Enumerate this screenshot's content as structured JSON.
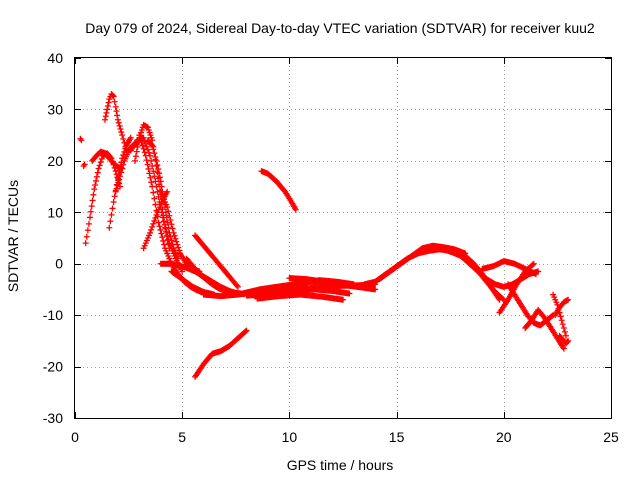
{
  "chart_data": {
    "type": "scatter",
    "title": "Day 079 of 2024, Sidereal Day-to-day VTEC variation (SDTVAR) for receiver kuu2",
    "xlabel": "GPS time / hours",
    "ylabel": "SDTVAR / TECUs",
    "xlim": [
      0,
      25
    ],
    "ylim": [
      -30,
      40
    ],
    "xticks": [
      0,
      5,
      10,
      15,
      20,
      25
    ],
    "yticks": [
      -30,
      -20,
      -10,
      0,
      10,
      20,
      30,
      40
    ],
    "grid": true,
    "marker": "+",
    "color": "#ff0000",
    "series": [
      {
        "name": "trace-01",
        "x": [
          0.25,
          0.3
        ],
        "y": [
          24.3,
          24.0
        ]
      },
      {
        "name": "trace-02",
        "x": [
          0.4,
          0.45
        ],
        "y": [
          19.0,
          19.3
        ]
      },
      {
        "name": "trace-03",
        "x": [
          0.5,
          0.7,
          0.9,
          1.1,
          1.3,
          1.5,
          1.7,
          1.9,
          2.1
        ],
        "y": [
          4.0,
          9.0,
          14.5,
          18.5,
          21.0,
          21.5,
          20.5,
          18.0,
          15.0
        ]
      },
      {
        "name": "trace-04",
        "x": [
          0.8,
          1.0,
          1.2,
          1.4,
          1.6,
          1.8,
          2.0,
          2.2
        ],
        "y": [
          20.0,
          21.0,
          21.8,
          21.5,
          20.5,
          19.5,
          18.8,
          18.5
        ]
      },
      {
        "name": "trace-05",
        "x": [
          1.4,
          1.5,
          1.6,
          1.7,
          1.8,
          1.9,
          2.0,
          2.2,
          2.4
        ],
        "y": [
          28.0,
          30.0,
          32.0,
          33.0,
          32.5,
          30.5,
          28.0,
          25.0,
          22.0
        ]
      },
      {
        "name": "trace-06",
        "x": [
          1.6,
          1.8,
          2.0,
          2.2,
          2.4,
          2.6
        ],
        "y": [
          7.0,
          12.0,
          16.5,
          20.5,
          23.0,
          24.5
        ]
      },
      {
        "name": "trace-07",
        "x": [
          1.9,
          2.1,
          2.3,
          2.5,
          2.7,
          2.9
        ],
        "y": [
          14.0,
          17.0,
          20.0,
          22.0,
          23.0,
          23.3
        ]
      },
      {
        "name": "trace-08",
        "x": [
          2.8,
          3.0,
          3.2,
          3.4,
          3.6,
          3.8,
          4.0,
          4.2,
          4.4
        ],
        "y": [
          20.0,
          24.5,
          27.0,
          26.5,
          24.0,
          19.0,
          13.0,
          7.0,
          3.0
        ]
      },
      {
        "name": "trace-09",
        "x": [
          2.6,
          2.9,
          3.2,
          3.5,
          3.8,
          4.1,
          4.4,
          4.7,
          5.0
        ],
        "y": [
          22.0,
          24.0,
          24.5,
          21.0,
          15.0,
          9.0,
          4.0,
          1.0,
          -1.5
        ]
      },
      {
        "name": "trace-10",
        "x": [
          3.0,
          3.3,
          3.6,
          3.9,
          4.2,
          4.5,
          4.8,
          5.1,
          5.4,
          5.7,
          6.0
        ],
        "y": [
          25.0,
          21.0,
          15.0,
          8.0,
          3.0,
          0.0,
          -2.0,
          -3.5,
          -4.5,
          -5.2,
          -5.6
        ]
      },
      {
        "name": "trace-11",
        "x": [
          3.4,
          3.6,
          3.8,
          4.0,
          4.2,
          4.4,
          4.6,
          4.8
        ],
        "y": [
          24.0,
          23.0,
          20.0,
          16.0,
          11.0,
          6.0,
          3.0,
          1.0
        ]
      },
      {
        "name": "trace-12",
        "x": [
          3.2,
          3.5,
          3.8,
          4.1,
          4.3
        ],
        "y": [
          3.0,
          6.0,
          9.5,
          12.5,
          14.0
        ]
      },
      {
        "name": "trace-13",
        "x": [
          4.0,
          4.3,
          4.6,
          4.9,
          5.2,
          5.5,
          5.8
        ],
        "y": [
          14.0,
          11.0,
          6.0,
          2.0,
          0.0,
          -1.0,
          -1.5
        ]
      },
      {
        "name": "trace-14",
        "x": [
          4.0,
          4.4,
          4.8,
          5.2,
          5.6,
          6.0,
          6.4,
          6.8,
          7.2,
          7.6
        ],
        "y": [
          0.0,
          0.0,
          -0.3,
          -0.8,
          -1.5,
          -2.5,
          -3.5,
          -4.5,
          -5.3,
          -5.8
        ]
      },
      {
        "name": "trace-15",
        "x": [
          4.5,
          5.0,
          5.5,
          6.0,
          6.5
        ],
        "y": [
          -1.5,
          -3.0,
          -4.5,
          -5.5,
          -6.0
        ]
      },
      {
        "name": "trace-16",
        "x": [
          5.6,
          6.0,
          6.4,
          6.8,
          7.2,
          7.6
        ],
        "y": [
          5.5,
          3.5,
          1.5,
          -0.5,
          -2.5,
          -4.5
        ]
      },
      {
        "name": "trace-17",
        "x": [
          5.2,
          5.5,
          5.8,
          6.1,
          6.4,
          6.7,
          7.0,
          7.3,
          7.6,
          7.9
        ],
        "y": [
          1.0,
          -0.5,
          -2.0,
          -3.0,
          -4.0,
          -4.8,
          -5.3,
          -5.6,
          -5.8,
          -5.9
        ]
      },
      {
        "name": "trace-18",
        "x": [
          6.0,
          6.8,
          7.6,
          8.4,
          9.2,
          10.0,
          10.8,
          11.6,
          12.4,
          13.2,
          14.0
        ],
        "y": [
          -6.0,
          -6.3,
          -6.0,
          -5.5,
          -5.2,
          -5.0,
          -4.8,
          -4.5,
          -4.3,
          -4.2,
          -4.0
        ]
      },
      {
        "name": "trace-19",
        "x": [
          7.0,
          7.8,
          8.6,
          9.4,
          10.2,
          11.0,
          11.8,
          12.6,
          13.4
        ],
        "y": [
          -5.5,
          -5.8,
          -5.0,
          -4.5,
          -4.0,
          -3.5,
          -3.8,
          -4.2,
          -4.6
        ]
      },
      {
        "name": "trace-20",
        "x": [
          8.0,
          8.8,
          9.6,
          10.4,
          11.2,
          12.0,
          12.8
        ],
        "y": [
          -6.2,
          -6.0,
          -5.5,
          -5.2,
          -5.0,
          -5.3,
          -5.8
        ]
      },
      {
        "name": "trace-21",
        "x": [
          9.0,
          9.8,
          10.6,
          11.4,
          12.2,
          13.0
        ],
        "y": [
          -5.5,
          -4.8,
          -3.8,
          -3.2,
          -3.5,
          -4.0
        ]
      },
      {
        "name": "trace-22",
        "x": [
          8.5,
          9.5,
          10.5,
          11.5,
          12.5
        ],
        "y": [
          -6.8,
          -6.3,
          -6.0,
          -6.4,
          -7.0
        ]
      },
      {
        "name": "trace-23",
        "x": [
          10.0,
          10.8,
          11.6,
          12.4,
          13.2,
          14.0
        ],
        "y": [
          -2.8,
          -3.0,
          -3.5,
          -4.0,
          -4.5,
          -5.0
        ]
      },
      {
        "name": "trace-24",
        "x": [
          13.5,
          14.0,
          14.5,
          15.0,
          15.5,
          16.0,
          16.5,
          17.0,
          17.5,
          18.0
        ],
        "y": [
          -4.0,
          -3.5,
          -2.0,
          -0.5,
          1.0,
          2.0,
          2.5,
          2.8,
          2.5,
          2.0
        ]
      },
      {
        "name": "trace-25",
        "x": [
          14.2,
          14.7,
          15.2,
          15.7,
          16.2,
          16.7,
          17.2,
          17.7,
          18.2
        ],
        "y": [
          -3.0,
          -1.5,
          0.0,
          1.5,
          3.0,
          3.5,
          3.2,
          2.8,
          2.0
        ]
      },
      {
        "name": "trace-26",
        "x": [
          16.8,
          17.2,
          17.6,
          18.0,
          18.4,
          18.8,
          19.2,
          19.6,
          20.0
        ],
        "y": [
          3.0,
          2.8,
          2.2,
          1.5,
          0.0,
          -1.5,
          -3.5,
          -5.5,
          -7.0
        ]
      },
      {
        "name": "trace-27",
        "x": [
          17.4,
          17.8,
          18.2,
          18.6,
          19.0,
          19.4,
          19.8
        ],
        "y": [
          3.0,
          2.5,
          1.5,
          0.0,
          -2.0,
          -4.5,
          -7.0
        ]
      },
      {
        "name": "trace-28",
        "x": [
          18.4,
          18.8,
          19.2,
          19.6,
          20.0,
          20.4,
          20.8,
          21.2,
          21.6
        ],
        "y": [
          0.5,
          -1.5,
          -3.0,
          -4.0,
          -4.5,
          -4.0,
          -3.0,
          -2.0,
          -1.5
        ]
      },
      {
        "name": "trace-29",
        "x": [
          19.0,
          19.5,
          20.0,
          20.5,
          21.0,
          21.5
        ],
        "y": [
          -1.0,
          -0.5,
          0.5,
          0.0,
          -1.0,
          -2.0
        ]
      },
      {
        "name": "trace-30",
        "x": [
          19.8,
          20.2,
          20.6,
          21.0,
          21.4
        ],
        "y": [
          -9.5,
          -7.0,
          -4.0,
          -1.5,
          0.0
        ]
      },
      {
        "name": "trace-31",
        "x": [
          20.2,
          20.5,
          20.8,
          21.1,
          21.4,
          21.7,
          22.0,
          22.3
        ],
        "y": [
          -4.0,
          -6.0,
          -8.0,
          -10.0,
          -11.5,
          -12.0,
          -11.0,
          -10.0
        ]
      },
      {
        "name": "trace-32",
        "x": [
          21.0,
          21.3,
          21.6,
          21.9,
          22.2,
          22.5,
          22.8
        ],
        "y": [
          -12.5,
          -11.0,
          -9.0,
          -10.5,
          -12.5,
          -14.5,
          -16.5
        ]
      },
      {
        "name": "trace-33",
        "x": [
          22.3,
          22.5,
          22.7,
          22.9
        ],
        "y": [
          -6.0,
          -8.0,
          -11.0,
          -14.0
        ]
      },
      {
        "name": "trace-34",
        "x": [
          22.6,
          22.8,
          22.9,
          23.0
        ],
        "y": [
          -14.0,
          -15.0,
          -15.5,
          -15.0
        ]
      },
      {
        "name": "trace-35",
        "x": [
          22.4,
          22.6,
          22.8,
          23.0
        ],
        "y": [
          -10.0,
          -8.5,
          -7.5,
          -7.0
        ]
      },
      {
        "name": "trace-36",
        "x": [
          8.7,
          9.0,
          9.4,
          9.8,
          10.1,
          10.3
        ],
        "y": [
          18.0,
          17.5,
          16.0,
          14.0,
          12.0,
          10.5
        ]
      },
      {
        "name": "trace-37",
        "x": [
          5.6,
          6.0,
          6.4,
          6.8,
          7.2,
          7.6,
          8.0
        ],
        "y": [
          -22.0,
          -19.5,
          -17.5,
          -17.0,
          -16.0,
          -14.5,
          -13.0
        ]
      }
    ]
  }
}
